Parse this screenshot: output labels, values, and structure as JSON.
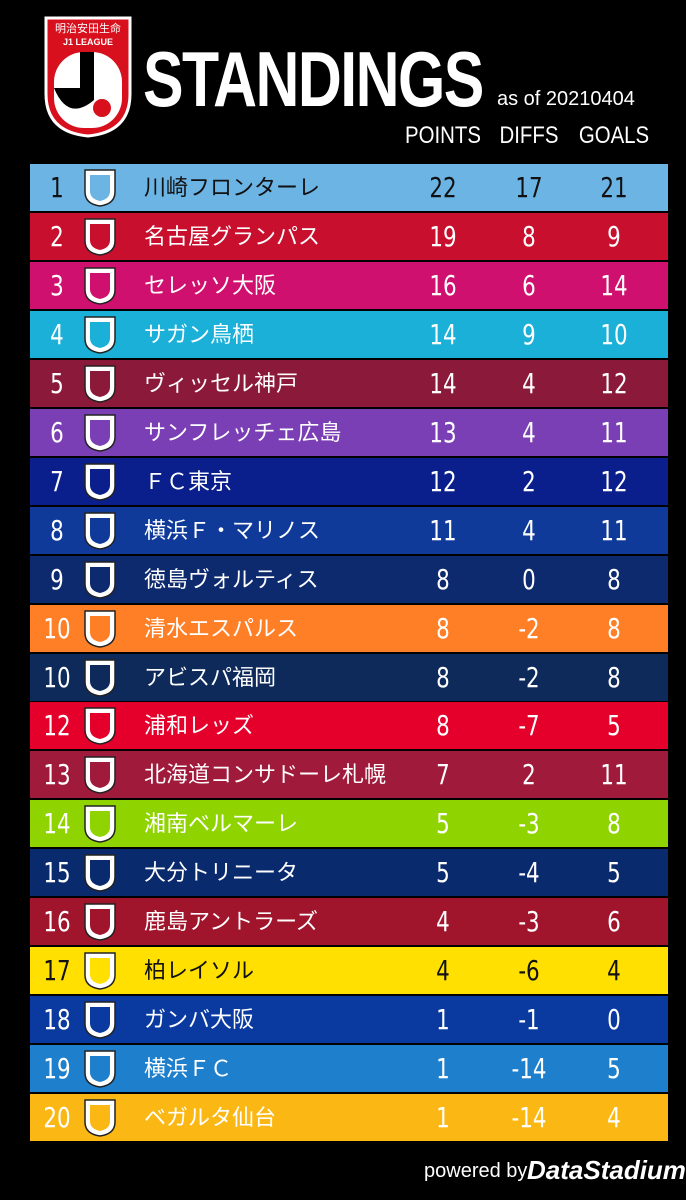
{
  "logo": {
    "sponsor": "明治安田生命",
    "league": "J1 LEAGUE"
  },
  "header": {
    "title": "STANDINGS",
    "date": "as of 20210404",
    "columns": [
      "POINTS",
      "DIFFS",
      "GOALS"
    ]
  },
  "table": {
    "rows": [
      {
        "rank": 1,
        "team": "川崎フロンターレ",
        "points": 22,
        "diffs": 17,
        "goals": 21,
        "color": "#6cb4e4",
        "text_color": "#111111"
      },
      {
        "rank": 2,
        "team": "名古屋グランパス",
        "points": 19,
        "diffs": 8,
        "goals": 9,
        "color": "#c8102e",
        "text_color": "#ffffff"
      },
      {
        "rank": 3,
        "team": "セレッソ大阪",
        "points": 16,
        "diffs": 6,
        "goals": 14,
        "color": "#d0106e",
        "text_color": "#ffffff"
      },
      {
        "rank": 4,
        "team": "サガン鳥栖",
        "points": 14,
        "diffs": 9,
        "goals": 10,
        "color": "#1ab0d8",
        "text_color": "#ffffff"
      },
      {
        "rank": 5,
        "team": "ヴィッセル神戸",
        "points": 14,
        "diffs": 4,
        "goals": 12,
        "color": "#8b1a3a",
        "text_color": "#ffffff"
      },
      {
        "rank": 6,
        "team": "サンフレッチェ広島",
        "points": 13,
        "diffs": 4,
        "goals": 11,
        "color": "#7b3fb5",
        "text_color": "#ffffff"
      },
      {
        "rank": 7,
        "team": "ＦＣ東京",
        "points": 12,
        "diffs": 2,
        "goals": 12,
        "color": "#0a1e8c",
        "text_color": "#ffffff"
      },
      {
        "rank": 8,
        "team": "横浜Ｆ・マリノス",
        "points": 11,
        "diffs": 4,
        "goals": 11,
        "color": "#0f3a9a",
        "text_color": "#ffffff"
      },
      {
        "rank": 9,
        "team": "徳島ヴォルティス",
        "points": 8,
        "diffs": 0,
        "goals": 8,
        "color": "#0d2a6e",
        "text_color": "#ffffff"
      },
      {
        "rank": 10,
        "team": "清水エスパルス",
        "points": 8,
        "diffs": -2,
        "goals": 8,
        "color": "#ff7f27",
        "text_color": "#ffffff"
      },
      {
        "rank": 10,
        "team": "アビスパ福岡",
        "points": 8,
        "diffs": -2,
        "goals": 8,
        "color": "#0d2a5a",
        "text_color": "#ffffff"
      },
      {
        "rank": 12,
        "team": "浦和レッズ",
        "points": 8,
        "diffs": -7,
        "goals": 5,
        "color": "#e4002b",
        "text_color": "#ffffff"
      },
      {
        "rank": 13,
        "team": "北海道コンサドーレ札幌",
        "points": 7,
        "diffs": 2,
        "goals": 11,
        "color": "#a01b3b",
        "text_color": "#ffffff"
      },
      {
        "rank": 14,
        "team": "湘南ベルマーレ",
        "points": 5,
        "diffs": -3,
        "goals": 8,
        "color": "#8fd400",
        "text_color": "#ffffff"
      },
      {
        "rank": 15,
        "team": "大分トリニータ",
        "points": 5,
        "diffs": -4,
        "goals": 5,
        "color": "#0a2a6e",
        "text_color": "#ffffff"
      },
      {
        "rank": 16,
        "team": "鹿島アントラーズ",
        "points": 4,
        "diffs": -3,
        "goals": 6,
        "color": "#a0142c",
        "text_color": "#ffffff"
      },
      {
        "rank": 17,
        "team": "柏レイソル",
        "points": 4,
        "diffs": -6,
        "goals": 4,
        "color": "#ffe000",
        "text_color": "#111111"
      },
      {
        "rank": 18,
        "team": "ガンバ大阪",
        "points": 1,
        "diffs": -1,
        "goals": 0,
        "color": "#0a3aa0",
        "text_color": "#ffffff"
      },
      {
        "rank": 19,
        "team": "横浜ＦＣ",
        "points": 1,
        "diffs": -14,
        "goals": 5,
        "color": "#1e7fcc",
        "text_color": "#ffffff"
      },
      {
        "rank": 20,
        "team": "ベガルタ仙台",
        "points": 1,
        "diffs": -14,
        "goals": 4,
        "color": "#fbb814",
        "text_color": "#ffffff"
      }
    ]
  },
  "footer": {
    "powered": "powered by",
    "brand": "DataStadium"
  }
}
